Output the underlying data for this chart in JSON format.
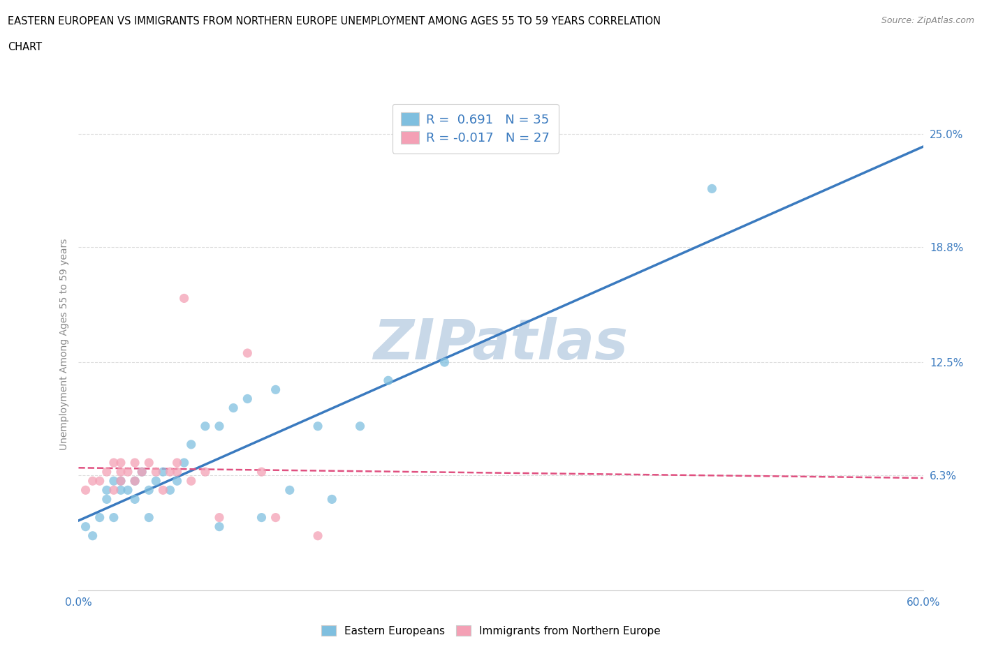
{
  "title_line1": "EASTERN EUROPEAN VS IMMIGRANTS FROM NORTHERN EUROPE UNEMPLOYMENT AMONG AGES 55 TO 59 YEARS CORRELATION",
  "title_line2": "CHART",
  "source_text": "Source: ZipAtlas.com",
  "ylabel": "Unemployment Among Ages 55 to 59 years",
  "xlim": [
    0.0,
    0.6
  ],
  "ylim": [
    0.0,
    0.27
  ],
  "yticks": [
    0.063,
    0.125,
    0.188,
    0.25
  ],
  "ytick_labels": [
    "6.3%",
    "12.5%",
    "18.8%",
    "25.0%"
  ],
  "xticks": [
    0.0,
    0.1,
    0.2,
    0.3,
    0.4,
    0.5,
    0.6
  ],
  "xtick_labels": [
    "0.0%",
    "",
    "",
    "",
    "",
    "",
    "60.0%"
  ],
  "grid_color": "#dddddd",
  "watermark_text": "ZIPatlas",
  "watermark_color": "#c8d8e8",
  "blue_color": "#7fbfdf",
  "pink_color": "#f4a0b5",
  "blue_line_color": "#3a7abf",
  "pink_line_color": "#e05080",
  "R_blue": 0.691,
  "N_blue": 35,
  "R_pink": -0.017,
  "N_pink": 27,
  "blue_scatter_x": [
    0.005,
    0.01,
    0.015,
    0.02,
    0.02,
    0.025,
    0.025,
    0.03,
    0.03,
    0.035,
    0.04,
    0.04,
    0.045,
    0.05,
    0.05,
    0.055,
    0.06,
    0.065,
    0.07,
    0.075,
    0.08,
    0.09,
    0.1,
    0.1,
    0.11,
    0.12,
    0.13,
    0.14,
    0.15,
    0.17,
    0.18,
    0.2,
    0.22,
    0.26,
    0.45
  ],
  "blue_scatter_y": [
    0.035,
    0.03,
    0.04,
    0.05,
    0.055,
    0.04,
    0.06,
    0.055,
    0.06,
    0.055,
    0.05,
    0.06,
    0.065,
    0.04,
    0.055,
    0.06,
    0.065,
    0.055,
    0.06,
    0.07,
    0.08,
    0.09,
    0.035,
    0.09,
    0.1,
    0.105,
    0.04,
    0.11,
    0.055,
    0.09,
    0.05,
    0.09,
    0.115,
    0.125,
    0.22
  ],
  "pink_scatter_x": [
    0.005,
    0.01,
    0.015,
    0.02,
    0.025,
    0.025,
    0.03,
    0.03,
    0.03,
    0.035,
    0.04,
    0.04,
    0.045,
    0.05,
    0.055,
    0.06,
    0.065,
    0.07,
    0.07,
    0.075,
    0.08,
    0.09,
    0.1,
    0.12,
    0.13,
    0.14,
    0.17
  ],
  "pink_scatter_y": [
    0.055,
    0.06,
    0.06,
    0.065,
    0.055,
    0.07,
    0.06,
    0.065,
    0.07,
    0.065,
    0.06,
    0.07,
    0.065,
    0.07,
    0.065,
    0.055,
    0.065,
    0.065,
    0.07,
    0.16,
    0.06,
    0.065,
    0.04,
    0.13,
    0.065,
    0.04,
    0.03
  ],
  "background_color": "#ffffff",
  "plot_bg_color": "#ffffff"
}
